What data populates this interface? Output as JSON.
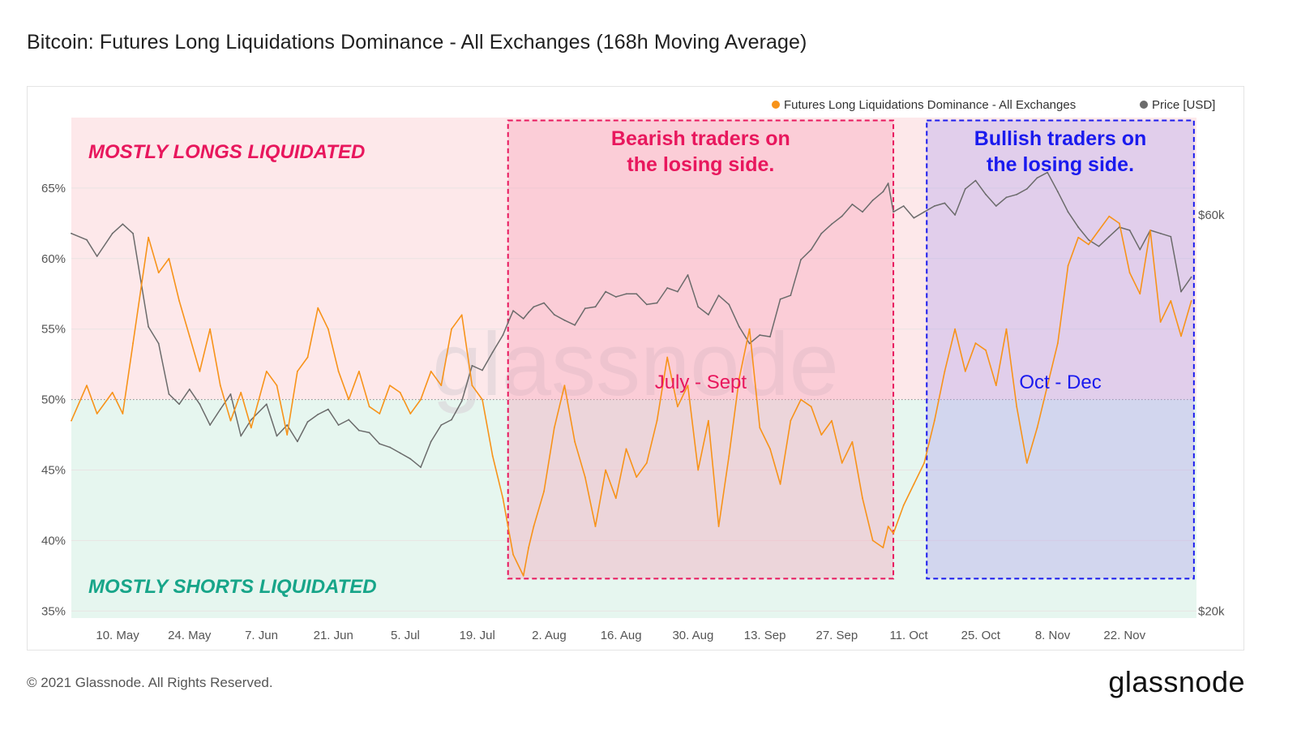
{
  "header": {
    "title": "Bitcoin: Futures Long Liquidations Dominance - All Exchanges (168h Moving Average)"
  },
  "footer": {
    "copyright": "© 2021 Glassnode. All Rights Reserved.",
    "logo": "glassnode"
  },
  "chart_data": {
    "type": "line",
    "title": "Bitcoin: Futures Long Liquidations Dominance - All Exchanges (168h Moving Average)",
    "watermark": "glassnode",
    "legend": {
      "placement": "top-right",
      "items": [
        {
          "label": "Futures Long Liquidations Dominance - All Exchanges",
          "color": "#f7931a"
        },
        {
          "label": "Price [USD]",
          "color": "#6b6b6b"
        }
      ]
    },
    "x_ticks": [
      "10. May",
      "24. May",
      "7. Jun",
      "21. Jun",
      "5. Jul",
      "19. Jul",
      "2. Aug",
      "16. Aug",
      "30. Aug",
      "13. Sep",
      "27. Sep",
      "11. Oct",
      "25. Oct",
      "8. Nov",
      "22. Nov"
    ],
    "x_range_days": [
      0,
      219
    ],
    "x_start_date": "2021-05-01",
    "x_first_tick_day": 9,
    "x_tick_step_days": 14,
    "y_left": {
      "ticks": [
        "35%",
        "40%",
        "45%",
        "50%",
        "55%",
        "60%",
        "65%"
      ],
      "tick_values": [
        35,
        40,
        45,
        50,
        55,
        60,
        65
      ],
      "range": [
        34.5,
        70
      ]
    },
    "y_right": {
      "ticks": [
        "$20k",
        "$60k"
      ],
      "tick_values": [
        20000,
        60000
      ],
      "scale": "log",
      "range": [
        20000,
        70000
      ]
    },
    "threshold": 50,
    "regions": {
      "upper_label": "MOSTLY LONGS LIQUIDATED",
      "lower_label": "MOSTLY SHORTS LIQUIDATED",
      "upper_color": "#fde8ea",
      "lower_color": "#e6f6ef",
      "upper_label_color": "#e8175d",
      "lower_label_color": "#17a589"
    },
    "annotations": [
      {
        "title_line1": "Bearish traders on",
        "title_line2": "the losing side.",
        "period": "July - Sept",
        "color": "#e8175d",
        "fill": "#f7a1b8",
        "start_day": 85,
        "end_day": 160,
        "y_top_pct": 69.8,
        "y_bottom_pct": 37.3
      },
      {
        "title_line1": "Bullish traders on",
        "title_line2": "the losing side.",
        "period": "Oct - Dec",
        "color": "#1a1aee",
        "fill": "#b4a4ec",
        "start_day": 166.5,
        "end_day": 218.5,
        "y_top_pct": 69.8,
        "y_bottom_pct": 37.3
      }
    ],
    "series": [
      {
        "name": "Futures Long Liquidations Dominance - All Exchanges",
        "unit": "%",
        "color": "#f7931a",
        "x_days": [
          0,
          3,
          5,
          8,
          10,
          12,
          15,
          17,
          19,
          21,
          23,
          25,
          27,
          29,
          31,
          33,
          35,
          38,
          40,
          42,
          44,
          46,
          48,
          50,
          52,
          54,
          56,
          58,
          60,
          62,
          64,
          66,
          68,
          70,
          72,
          74,
          76,
          78,
          80,
          82,
          84,
          85,
          86,
          88,
          89,
          90,
          92,
          94,
          96,
          98,
          100,
          102,
          104,
          106,
          108,
          110,
          112,
          114,
          116,
          118,
          120,
          122,
          124,
          126,
          128,
          130,
          132,
          134,
          136,
          138,
          140,
          142,
          144,
          146,
          148,
          150,
          152,
          154,
          156,
          158,
          159,
          160,
          162,
          164,
          166,
          168,
          170,
          172,
          174,
          176,
          178,
          180,
          182,
          184,
          186,
          188,
          190,
          192,
          194,
          196,
          198,
          200,
          202,
          204,
          206,
          208,
          210,
          212,
          214,
          216,
          218
        ],
        "values": [
          48.5,
          51,
          49,
          50.5,
          49,
          54,
          61.5,
          59,
          60,
          57,
          54.5,
          52,
          55,
          51,
          48.5,
          50.5,
          48,
          52,
          51,
          47.5,
          52,
          53,
          56.5,
          55,
          52,
          50,
          52,
          49.5,
          49,
          51,
          50.5,
          49,
          50,
          52,
          51,
          55,
          56,
          51,
          50,
          46,
          43,
          41,
          39,
          37.5,
          39.5,
          41,
          43.5,
          48,
          51,
          47,
          44.5,
          41,
          45,
          43,
          46.5,
          44.5,
          45.5,
          48.5,
          53,
          49.5,
          51,
          45,
          48.5,
          41,
          46,
          51.5,
          55,
          48,
          46.5,
          44,
          48.5,
          50,
          49.5,
          47.5,
          48.5,
          45.5,
          47,
          43,
          40,
          39.5,
          41,
          40.5,
          42.5,
          44,
          45.5,
          48.5,
          52,
          55,
          52,
          54,
          53.5,
          51,
          55,
          49.5,
          45.5,
          48,
          51,
          54,
          59.5,
          61.5,
          61,
          62,
          63,
          62.5,
          59,
          57.5,
          62,
          55.5,
          57,
          54.5,
          57
        ]
      },
      {
        "name": "Price [USD]",
        "unit": "USD",
        "color": "#6b6b6b",
        "x_days": [
          0,
          3,
          5,
          8,
          10,
          12,
          15,
          17,
          19,
          21,
          23,
          25,
          27,
          29,
          31,
          33,
          35,
          38,
          40,
          42,
          44,
          46,
          48,
          50,
          52,
          54,
          56,
          58,
          60,
          62,
          64,
          66,
          68,
          70,
          72,
          74,
          76,
          78,
          80,
          82,
          84,
          85,
          86,
          88,
          89,
          90,
          92,
          94,
          96,
          98,
          100,
          102,
          104,
          106,
          108,
          110,
          112,
          114,
          116,
          118,
          120,
          122,
          124,
          126,
          128,
          130,
          132,
          134,
          136,
          138,
          140,
          142,
          144,
          146,
          148,
          150,
          152,
          154,
          156,
          158,
          159,
          160,
          162,
          164,
          166,
          168,
          170,
          172,
          174,
          176,
          178,
          180,
          182,
          184,
          186,
          188,
          190,
          192,
          194,
          196,
          198,
          200,
          202,
          204,
          206,
          208,
          210,
          212,
          214,
          216,
          218
        ],
        "values": [
          57000,
          56000,
          53500,
          57000,
          58500,
          57000,
          44000,
          42000,
          36500,
          35500,
          37000,
          35500,
          33500,
          35000,
          36500,
          32500,
          34000,
          35500,
          32500,
          33500,
          32000,
          33800,
          34500,
          35000,
          33500,
          34000,
          33000,
          32800,
          31800,
          31500,
          31000,
          30500,
          29800,
          32000,
          33500,
          34000,
          35800,
          39500,
          39000,
          41000,
          43000,
          44500,
          46000,
          45000,
          45800,
          46500,
          47000,
          45500,
          44800,
          44200,
          46300,
          46500,
          48500,
          47800,
          48200,
          48200,
          46800,
          47000,
          49000,
          48500,
          50800,
          46500,
          45500,
          48000,
          46800,
          44000,
          42000,
          43000,
          42800,
          47500,
          48000,
          53000,
          54500,
          57000,
          58500,
          59800,
          61800,
          60500,
          62500,
          64000,
          65500,
          60500,
          61500,
          59500,
          60500,
          61500,
          62000,
          60000,
          64500,
          66000,
          63500,
          61500,
          63000,
          63500,
          64500,
          66500,
          67500,
          64000,
          60500,
          58000,
          56000,
          55000,
          56500,
          58000,
          57500,
          54500,
          57500,
          57000,
          56500,
          48500,
          50500
        ]
      }
    ]
  }
}
